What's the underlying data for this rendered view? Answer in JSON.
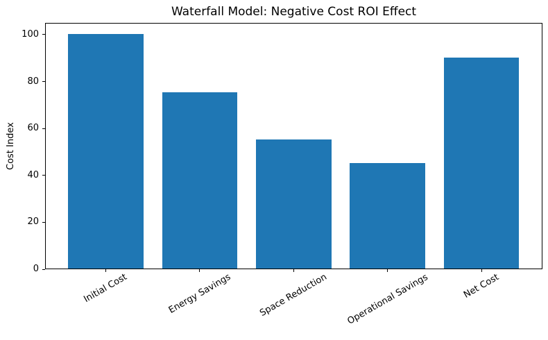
{
  "figure": {
    "background": "#ffffff",
    "spine_color": "#000000",
    "text_color": "#000000"
  },
  "chart_data": {
    "type": "bar",
    "title": "Waterfall Model: Negative Cost ROI Effect",
    "xlabel": "",
    "ylabel": "Cost Index",
    "categories": [
      "Initial Cost",
      "Energy Savings",
      "Space Reduction",
      "Operational Savings",
      "Net Cost"
    ],
    "values": [
      100,
      75,
      55,
      45,
      90
    ],
    "yticks": [
      0,
      20,
      40,
      60,
      80,
      100
    ],
    "ylim": [
      0,
      105
    ],
    "bar_color": "#1f77b4",
    "grid": false,
    "legend": null,
    "x_tick_rotation_deg": 30
  }
}
